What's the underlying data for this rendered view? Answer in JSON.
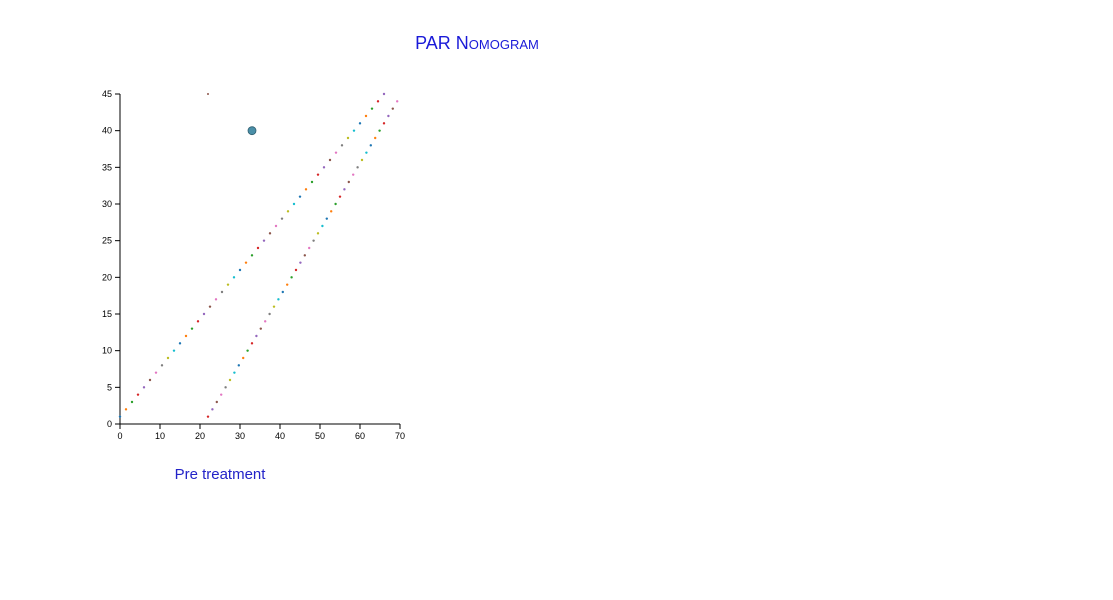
{
  "header": {
    "title": "PAR Nomogram"
  },
  "chart_data": {
    "type": "scatter",
    "title": "PAR Nomogram",
    "xlabel": "Pre treatment",
    "ylabel": "",
    "xlim": [
      0,
      70
    ],
    "ylim": [
      0,
      45
    ],
    "xticks": [
      0,
      10,
      20,
      30,
      40,
      50,
      60,
      70
    ],
    "yticks": [
      0,
      5,
      10,
      15,
      20,
      25,
      30,
      35,
      40,
      45
    ],
    "grid": false,
    "dot_palette": [
      "#1f77b4",
      "#ff7f0e",
      "#2ca02c",
      "#d62728",
      "#9467bd",
      "#8c564b",
      "#e377c2",
      "#7f7f7f",
      "#bcbd22",
      "#17becf"
    ],
    "series": [
      {
        "description_only_for_layout": "upper boundary line",
        "x": [
          0,
          1.5,
          3,
          4.5,
          6,
          7.5,
          9,
          10.5,
          12,
          13.5,
          15,
          16.5,
          18,
          19.5,
          21,
          22.5,
          24,
          25.5,
          27,
          28.5,
          30,
          31.5,
          33,
          34.5,
          36,
          37.5,
          39,
          40.5,
          42,
          43.5,
          45,
          46.5,
          48,
          49.5,
          51,
          52.5,
          54,
          55.5,
          57,
          58.5,
          60,
          61.5,
          63,
          64.5,
          66
        ],
        "y": [
          1,
          2,
          3,
          4,
          5,
          6,
          7,
          8,
          9,
          10,
          11,
          12,
          13,
          14,
          15,
          16,
          17,
          18,
          19,
          20,
          21,
          22,
          23,
          24,
          25,
          26,
          27,
          28,
          29,
          30,
          31,
          32,
          33,
          34,
          35,
          36,
          37,
          38,
          39,
          40,
          41,
          42,
          43,
          44,
          45
        ]
      },
      {
        "description_only_for_layout": "lower boundary line",
        "x": [
          22,
          23.1,
          24.2,
          25.3,
          26.4,
          27.5,
          28.6,
          29.7,
          30.8,
          31.9,
          33,
          34.1,
          35.2,
          36.3,
          37.4,
          38.5,
          39.6,
          40.7,
          41.8,
          42.9,
          44,
          45.1,
          46.2,
          47.3,
          48.4,
          49.5,
          50.6,
          51.7,
          52.8,
          53.9,
          55,
          56.1,
          57.2,
          58.3,
          59.4,
          60.5,
          61.6,
          62.7,
          63.8,
          64.9,
          66,
          67.1,
          68.2,
          69.3
        ],
        "y": [
          1,
          2,
          3,
          4,
          5,
          6,
          7,
          8,
          9,
          10,
          11,
          12,
          13,
          14,
          15,
          16,
          17,
          18,
          19,
          20,
          21,
          22,
          23,
          24,
          25,
          26,
          27,
          28,
          29,
          30,
          31,
          32,
          33,
          34,
          35,
          36,
          37,
          38,
          39,
          40,
          41,
          42,
          43,
          44
        ]
      }
    ],
    "highlight_point": {
      "x": 33,
      "y": 40,
      "color": "#4a8fa8"
    },
    "stray_point": {
      "x": 22,
      "y": 45,
      "color": "#8c564b"
    }
  },
  "axis": {
    "xlabel": "Pre treatment"
  }
}
